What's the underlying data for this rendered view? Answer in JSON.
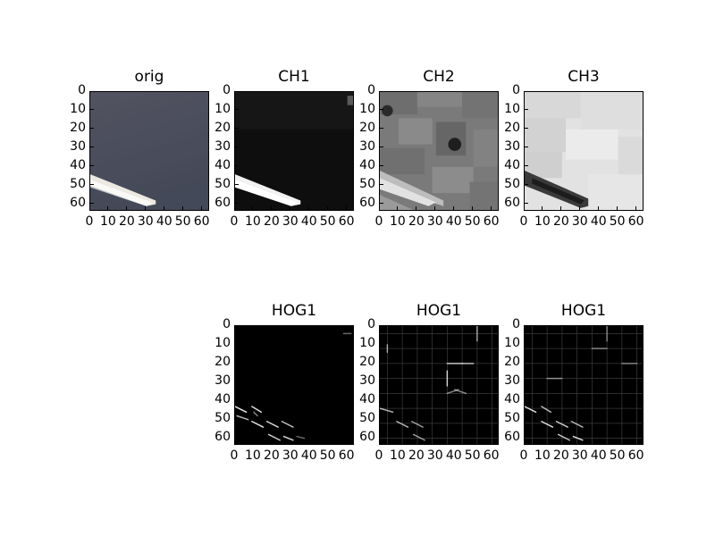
{
  "chart_data": [
    {
      "type": "heatmap",
      "title": "orig",
      "colormap": "rgb",
      "xlim": [
        0,
        64
      ],
      "ylim": [
        64,
        0
      ],
      "xticks": [
        0,
        10,
        20,
        30,
        40,
        50,
        60
      ],
      "yticks": [
        0,
        10,
        20,
        30,
        40,
        50,
        60
      ],
      "xtick_labels": [
        "0",
        "10",
        "20",
        "30",
        "40",
        "50",
        "60"
      ],
      "ytick_labels": [
        "0",
        "10",
        "20",
        "30",
        "40",
        "50",
        "60"
      ],
      "content": "orig"
    },
    {
      "type": "heatmap",
      "title": "CH1",
      "colormap": "gray",
      "xlim": [
        0,
        64
      ],
      "ylim": [
        64,
        0
      ],
      "xticks": [
        0,
        10,
        20,
        30,
        40,
        50,
        60
      ],
      "yticks": [
        0,
        10,
        20,
        30,
        40,
        50,
        60
      ],
      "xtick_labels": [
        "0",
        "10",
        "20",
        "30",
        "40",
        "50",
        "60"
      ],
      "ytick_labels": [
        "0",
        "10",
        "20",
        "30",
        "40",
        "50",
        "60"
      ],
      "content": "ch1"
    },
    {
      "type": "heatmap",
      "title": "CH2",
      "colormap": "gray",
      "xlim": [
        0,
        64
      ],
      "ylim": [
        64,
        0
      ],
      "xticks": [
        0,
        10,
        20,
        30,
        40,
        50,
        60
      ],
      "yticks": [
        0,
        10,
        20,
        30,
        40,
        50,
        60
      ],
      "xtick_labels": [
        "0",
        "10",
        "20",
        "30",
        "40",
        "50",
        "60"
      ],
      "ytick_labels": [
        "0",
        "10",
        "20",
        "30",
        "40",
        "50",
        "60"
      ],
      "content": "ch2"
    },
    {
      "type": "heatmap",
      "title": "CH3",
      "colormap": "gray",
      "xlim": [
        0,
        64
      ],
      "ylim": [
        64,
        0
      ],
      "xticks": [
        0,
        10,
        20,
        30,
        40,
        50,
        60
      ],
      "yticks": [
        0,
        10,
        20,
        30,
        40,
        50,
        60
      ],
      "xtick_labels": [
        "0",
        "10",
        "20",
        "30",
        "40",
        "50",
        "60"
      ],
      "ytick_labels": [
        "0",
        "10",
        "20",
        "30",
        "40",
        "50",
        "60"
      ],
      "content": "ch3"
    },
    {
      "type": "heatmap",
      "title": "HOG1",
      "colormap": "gray",
      "xlim": [
        0,
        64
      ],
      "ylim": [
        64,
        0
      ],
      "xticks": [
        0,
        10,
        20,
        30,
        40,
        50,
        60
      ],
      "yticks": [
        0,
        10,
        20,
        30,
        40,
        50,
        60
      ],
      "xtick_labels": [
        "0",
        "10",
        "20",
        "30",
        "40",
        "50",
        "60"
      ],
      "ytick_labels": [
        "0",
        "10",
        "20",
        "30",
        "40",
        "50",
        "60"
      ],
      "content": "hog1"
    },
    {
      "type": "heatmap",
      "title": "HOG1",
      "colormap": "gray",
      "xlim": [
        0,
        64
      ],
      "ylim": [
        64,
        0
      ],
      "xticks": [
        0,
        10,
        20,
        30,
        40,
        50,
        60
      ],
      "yticks": [
        0,
        10,
        20,
        30,
        40,
        50,
        60
      ],
      "xtick_labels": [
        "0",
        "10",
        "20",
        "30",
        "40",
        "50",
        "60"
      ],
      "ytick_labels": [
        "0",
        "10",
        "20",
        "30",
        "40",
        "50",
        "60"
      ],
      "content": "hog2"
    },
    {
      "type": "heatmap",
      "title": "HOG1",
      "colormap": "gray",
      "xlim": [
        0,
        64
      ],
      "ylim": [
        64,
        0
      ],
      "xticks": [
        0,
        10,
        20,
        30,
        40,
        50,
        60
      ],
      "yticks": [
        0,
        10,
        20,
        30,
        40,
        50,
        60
      ],
      "xtick_labels": [
        "0",
        "10",
        "20",
        "30",
        "40",
        "50",
        "60"
      ],
      "ytick_labels": [
        "0",
        "10",
        "20",
        "30",
        "40",
        "50",
        "60"
      ],
      "content": "hog3"
    }
  ]
}
